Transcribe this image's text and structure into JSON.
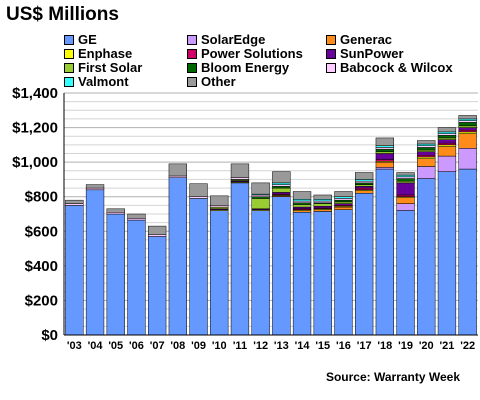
{
  "chart_data": {
    "type": "bar",
    "stacked": true,
    "title": "US$ Millions",
    "source": "Source: Warranty Week",
    "categories": [
      "'03",
      "'04",
      "'05",
      "'06",
      "'07",
      "'08",
      "'09",
      "'10",
      "'11",
      "'12",
      "'13",
      "'14",
      "'15",
      "'16",
      "'17",
      "'18",
      "'19",
      "'20",
      "'21",
      "'22"
    ],
    "y_ticks": [
      "$0",
      "$200",
      "$400",
      "$600",
      "$800",
      "$1,000",
      "$1,200",
      "$1,400"
    ],
    "ylim": [
      0,
      1400
    ],
    "grid": true,
    "legend_position": "top",
    "series": [
      {
        "name": "GE",
        "color": "#6699ff",
        "values": [
          750,
          840,
          700,
          665,
          570,
          910,
          790,
          720,
          880,
          720,
          800,
          710,
          715,
          725,
          820,
          960,
          720,
          905,
          945,
          960
        ]
      },
      {
        "name": "SolarEdge",
        "color": "#cc99ff",
        "values": [
          0,
          0,
          0,
          0,
          0,
          0,
          0,
          0,
          0,
          0,
          0,
          0,
          0,
          0,
          0,
          10,
          40,
          70,
          90,
          120
        ]
      },
      {
        "name": "Generac",
        "color": "#ff8c1a",
        "values": [
          0,
          0,
          0,
          0,
          0,
          0,
          0,
          0,
          0,
          0,
          5,
          10,
          10,
          15,
          15,
          30,
          35,
          45,
          55,
          85
        ]
      },
      {
        "name": "Enphase",
        "color": "#ffff00",
        "values": [
          0,
          0,
          0,
          0,
          0,
          0,
          0,
          5,
          5,
          5,
          5,
          5,
          5,
          5,
          5,
          5,
          5,
          10,
          10,
          10
        ]
      },
      {
        "name": "Power Solutions",
        "color": "#cc0066",
        "values": [
          0,
          0,
          0,
          0,
          0,
          0,
          0,
          0,
          0,
          0,
          5,
          5,
          5,
          5,
          10,
          10,
          10,
          10,
          10,
          10
        ]
      },
      {
        "name": "SunPower",
        "color": "#660099",
        "values": [
          0,
          0,
          0,
          0,
          0,
          0,
          0,
          5,
          5,
          5,
          10,
          10,
          10,
          10,
          10,
          35,
          70,
          20,
          20,
          15
        ]
      },
      {
        "name": "First Solar",
        "color": "#99cc33",
        "values": [
          0,
          0,
          0,
          0,
          0,
          0,
          0,
          10,
          5,
          60,
          25,
          15,
          15,
          10,
          10,
          10,
          10,
          10,
          10,
          10
        ]
      },
      {
        "name": "Bloom Energy",
        "color": "#006600",
        "values": [
          0,
          0,
          0,
          0,
          0,
          0,
          0,
          0,
          5,
          10,
          10,
          10,
          5,
          10,
          10,
          15,
          15,
          15,
          15,
          20
        ]
      },
      {
        "name": "Babcock & Wilcox",
        "color": "#ffccff",
        "values": [
          10,
          10,
          10,
          10,
          10,
          10,
          10,
          10,
          10,
          10,
          10,
          10,
          10,
          10,
          10,
          10,
          10,
          10,
          10,
          10
        ]
      },
      {
        "name": "Valmont",
        "color": "#33ffff",
        "values": [
          0,
          0,
          0,
          0,
          0,
          0,
          0,
          0,
          0,
          5,
          10,
          10,
          10,
          10,
          10,
          10,
          10,
          10,
          10,
          10
        ]
      },
      {
        "name": "Other",
        "color": "#999999",
        "values": [
          20,
          20,
          20,
          25,
          50,
          70,
          75,
          55,
          80,
          65,
          65,
          45,
          25,
          30,
          40,
          45,
          15,
          20,
          25,
          20
        ]
      }
    ]
  }
}
